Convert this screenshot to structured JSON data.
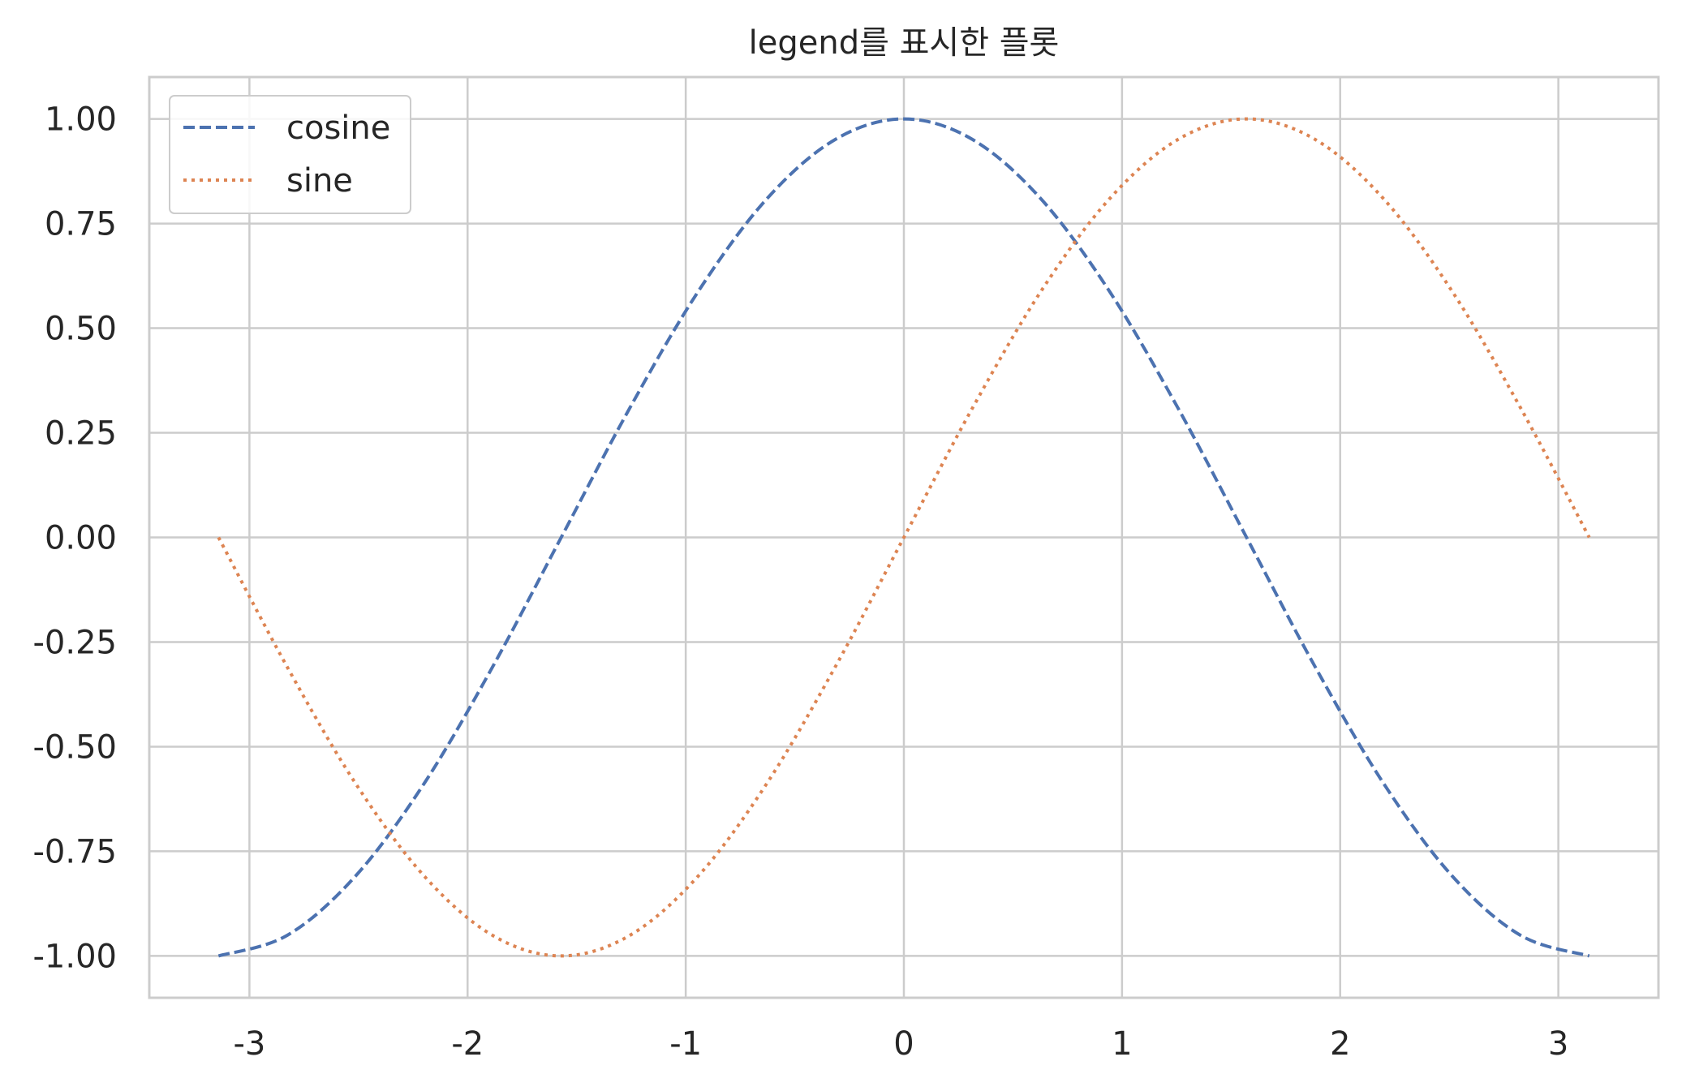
{
  "chart_data": {
    "type": "line",
    "title": "legend를 표시한 플롯",
    "xlabel": "",
    "ylabel": "",
    "xlim": [
      -3.459,
      3.459
    ],
    "ylim": [
      -1.1,
      1.1
    ],
    "x_ticks": [
      -3,
      -2,
      -1,
      0,
      1,
      2,
      3
    ],
    "x_tick_labels": [
      "-3",
      "-2",
      "-1",
      "0",
      "1",
      "2",
      "3"
    ],
    "y_ticks": [
      1.0,
      0.75,
      0.5,
      0.25,
      0.0,
      -0.25,
      -0.5,
      -0.75,
      -1.0
    ],
    "y_tick_labels": [
      "1.00",
      "0.75",
      "0.50",
      "0.25",
      "0.00",
      "-0.25",
      "-0.50",
      "-0.75",
      "-1.00"
    ],
    "grid": true,
    "legend_position": "upper-left",
    "x": [
      -3.1416,
      -2.8274,
      -2.5133,
      -2.1991,
      -1.885,
      -1.5708,
      -1.2566,
      -0.9425,
      -0.6283,
      -0.3142,
      0.0,
      0.3142,
      0.6283,
      0.9425,
      1.2566,
      1.5708,
      1.885,
      2.1991,
      2.5133,
      2.8274,
      3.1416
    ],
    "series": [
      {
        "name": "cosine",
        "color": "#4c72b0",
        "linestyle": "dashed",
        "values": [
          -1.0,
          -0.951,
          -0.809,
          -0.588,
          -0.309,
          0.0,
          0.309,
          0.588,
          0.809,
          0.951,
          1.0,
          0.951,
          0.809,
          0.588,
          0.309,
          0.0,
          -0.309,
          -0.588,
          -0.809,
          -0.951,
          -1.0
        ]
      },
      {
        "name": "sine",
        "color": "#dd8452",
        "linestyle": "dotted",
        "values": [
          0.0,
          -0.309,
          -0.588,
          -0.809,
          -0.951,
          -1.0,
          -0.951,
          -0.809,
          -0.588,
          -0.309,
          0.0,
          0.309,
          0.588,
          0.809,
          0.951,
          1.0,
          0.951,
          0.809,
          0.588,
          0.309,
          0.0
        ]
      }
    ]
  }
}
